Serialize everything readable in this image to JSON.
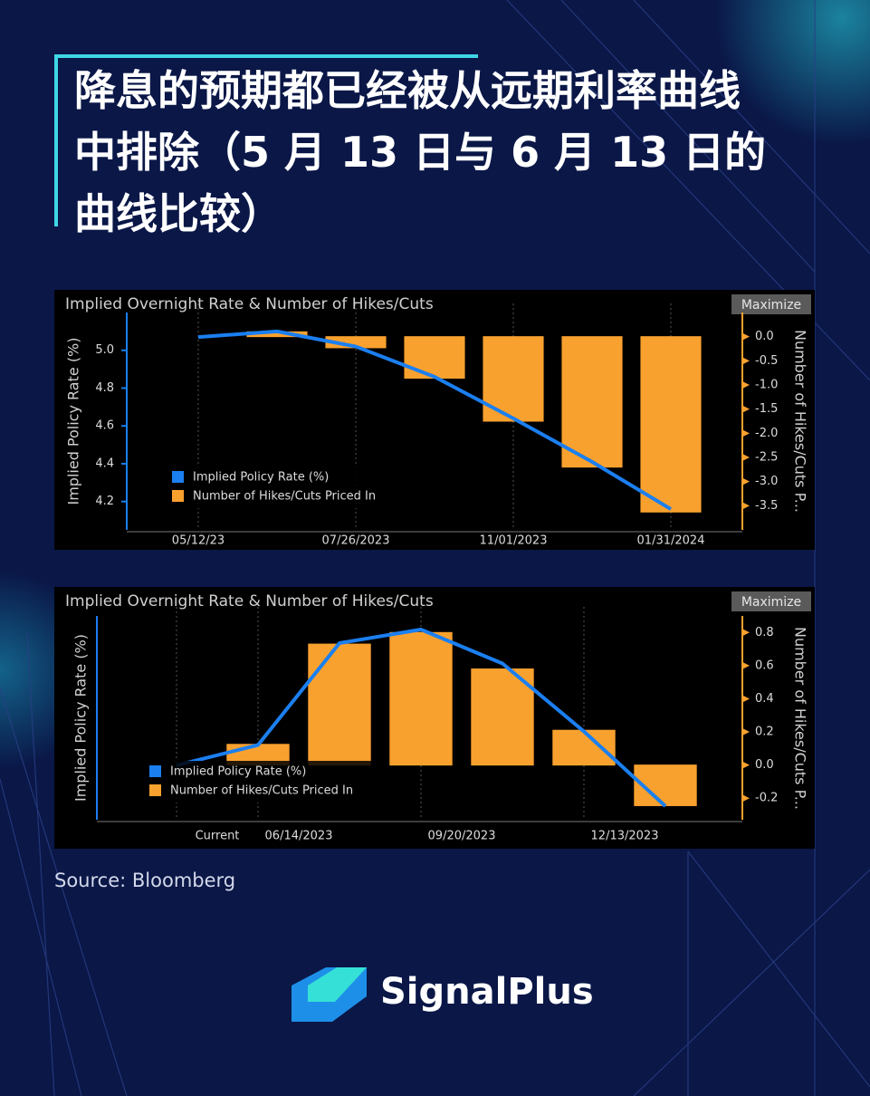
{
  "header": {
    "title": "降息的预期都已经被从远期利率曲线中排除（5 月 13 日与 6 月 13 日的曲线比较）"
  },
  "chart_data": [
    {
      "type": "combo",
      "title": "Implied Overnight Rate & Number of Hikes/Cuts",
      "button": "Maximize",
      "y_label": "Implied Policy Rate (%)",
      "y2_label": "Number of Hikes/Cuts P...",
      "categories": [
        "05/12/23",
        null,
        "07/26/2023",
        null,
        "11/01/2023",
        null,
        "01/31/2024"
      ],
      "series": [
        {
          "name": "Implied Policy Rate (%)",
          "type": "line",
          "color": "#1b7ff0",
          "values": [
            5.07,
            5.1,
            5.02,
            4.86,
            4.64,
            4.41,
            4.16
          ]
        },
        {
          "name": "Number of Hikes/Cuts Priced In",
          "type": "bar",
          "axis": "y2",
          "color": "#f9a12e",
          "values": [
            0.0,
            0.1,
            -0.23,
            -0.86,
            -1.75,
            -2.7,
            -3.63
          ]
        }
      ],
      "ylim": [
        4.05,
        5.2
      ],
      "yticks": [
        4.2,
        4.4,
        4.6,
        4.8,
        {
          "value": 5,
          "label": "5.0"
        }
      ],
      "y2lim": [
        -4.0,
        0.5
      ],
      "y2ticks": [
        {
          "value": 0,
          "label": "0.0"
        },
        -0.5,
        {
          "value": -1,
          "label": "-1.0"
        },
        -1.5,
        {
          "value": -2,
          "label": "-2.0"
        },
        -2.5,
        {
          "value": -3,
          "label": "-3.0"
        },
        -3.5
      ],
      "grid": true
    },
    {
      "type": "combo",
      "title": "Implied Overnight Rate & Number of Hikes/Cuts",
      "button": "Maximize",
      "y_label": "Implied Policy Rate (%)",
      "y2_label": "Number of Hikes/Cuts P...",
      "categories": [
        "Current",
        "06/14/2023",
        null,
        "09/20/2023",
        null,
        "12/13/2023",
        null
      ],
      "series": [
        {
          "name": "Implied Policy Rate (%)",
          "type": "line",
          "color": "#1b7ff0",
          "values": [
            5.1,
            5.13,
            5.28,
            5.3,
            5.25,
            5.15,
            5.04
          ]
        },
        {
          "name": "Number of Hikes/Cuts Priced In",
          "type": "bar",
          "axis": "y2",
          "color": "#f9a12e",
          "values": [
            0.0,
            0.125,
            0.73,
            0.8,
            0.58,
            0.21,
            -0.245
          ]
        }
      ],
      "ylim": [
        5.02,
        5.32
      ],
      "y2lim": [
        -0.33,
        0.9
      ],
      "y2ticks": [
        -0.2,
        {
          "value": 0,
          "label": "0.0"
        },
        0.2,
        0.4,
        0.6,
        0.8
      ],
      "grid": true
    }
  ],
  "source": "Source: Bloomberg",
  "brand": "SignalPlus"
}
